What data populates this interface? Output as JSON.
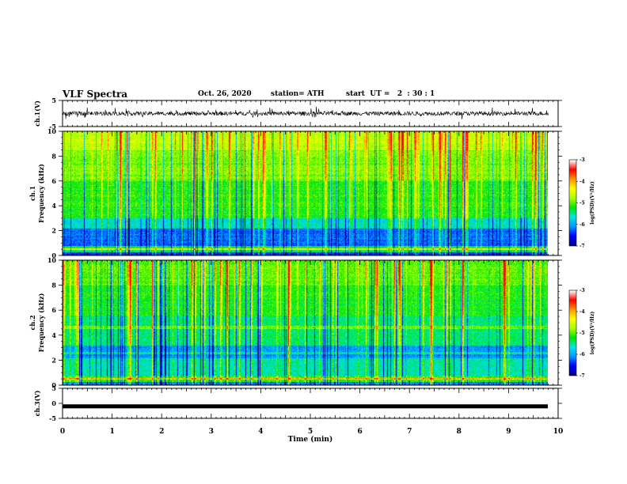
{
  "header": {
    "title": "VLF Spectra",
    "date": "Oct. 26, 2020",
    "station": "station= ATH",
    "start_time": "start  UT =   2  : 30 : 1"
  },
  "chart_data": [
    {
      "type": "line",
      "panel": "ch1-waveform",
      "ylabel": "ch.1(V)",
      "ylim": [
        -5,
        5
      ],
      "yticks": [
        "5",
        "-5"
      ],
      "xlim": [
        0,
        10
      ],
      "description_values": "noise trace around ~0 V",
      "series": [
        {
          "mean": 0,
          "amplitude": 1.3
        }
      ]
    },
    {
      "type": "heatmap",
      "panel": "ch1-spectrogram",
      "ylabel": "ch.1\nFrequency (kHz)",
      "ylim": [
        0,
        10
      ],
      "yticks": [
        "0",
        "2",
        "4",
        "6",
        "8",
        "10"
      ],
      "xlim": [
        0,
        9.8
      ],
      "colorbar": {
        "label": "log(PSD)(V²/Hz)",
        "range": [
          -7,
          -3
        ],
        "ticks": [
          "-3",
          "-4",
          "-5",
          "-6",
          "-7"
        ]
      }
    },
    {
      "type": "heatmap",
      "panel": "ch2-spectrogram",
      "ylabel": "ch.2\nFrequency (kHz)",
      "ylim": [
        0,
        10
      ],
      "yticks": [
        "0",
        "2",
        "4",
        "6",
        "8",
        "10"
      ],
      "xlim": [
        0,
        9.8
      ],
      "colorbar": {
        "label": "log(PSD)(V²/Hz)",
        "range": [
          -7,
          -3
        ],
        "ticks": [
          "-3",
          "-4",
          "-5",
          "-6",
          "-7"
        ]
      }
    },
    {
      "type": "line",
      "panel": "ch3-waveform",
      "ylabel": "ch.3(V)",
      "ylim": [
        -5,
        5
      ],
      "yticks": [
        "5",
        "0",
        "-5"
      ],
      "xlim": [
        0,
        10
      ],
      "series": [
        {
          "mean": -1,
          "amplitude": 0.3
        }
      ]
    }
  ],
  "xaxis": {
    "label": "Time  (min)",
    "ticks": [
      "0",
      "1",
      "2",
      "3",
      "4",
      "5",
      "6",
      "7",
      "8",
      "9",
      "10"
    ]
  },
  "colors": {
    "cmap": [
      "#00008b",
      "#0000ff",
      "#0096ff",
      "#00e6e6",
      "#00e600",
      "#aaff00",
      "#ffff00",
      "#ff9600",
      "#ff0000",
      "#ffffff"
    ]
  }
}
